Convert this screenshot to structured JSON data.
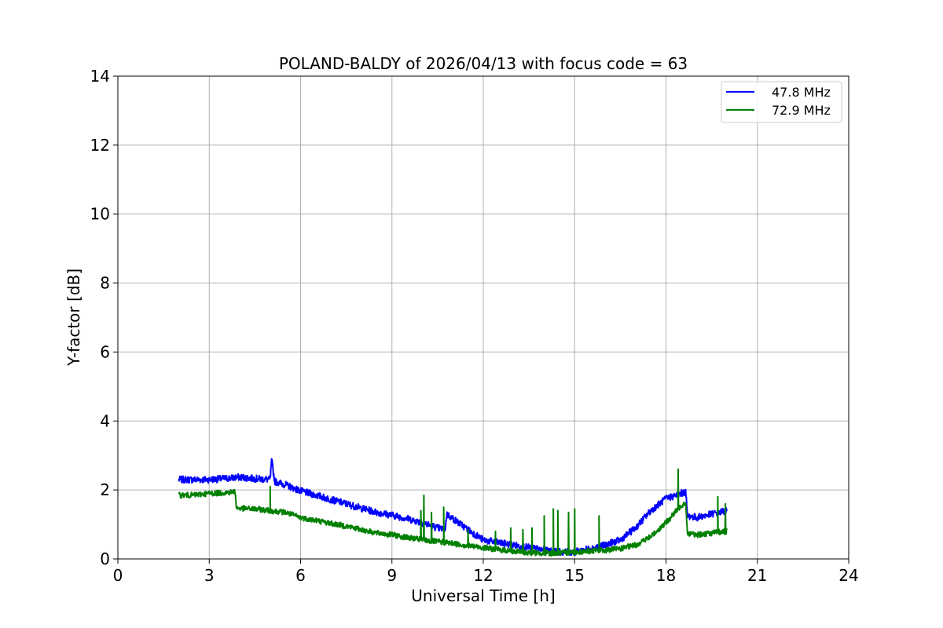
{
  "chart_data": {
    "type": "line",
    "title": "POLAND-BALDY of 2026/04/13 with focus code = 63",
    "xlabel": "Universal Time [h]",
    "ylabel": "Y-factor [dB]",
    "xlim": [
      0,
      24
    ],
    "ylim": [
      0,
      14
    ],
    "xticks": [
      0,
      3,
      6,
      9,
      12,
      15,
      18,
      21,
      24
    ],
    "yticks": [
      0,
      2,
      4,
      6,
      8,
      10,
      12,
      14
    ],
    "grid": true,
    "legend_position": "top-right",
    "series": [
      {
        "name": "47.8 MHz",
        "color": "#0000ff",
        "x": [
          2.0,
          2.5,
          3.0,
          3.5,
          4.0,
          4.5,
          5.0,
          5.05,
          5.15,
          5.5,
          6.0,
          6.5,
          7.0,
          7.5,
          8.0,
          8.5,
          9.0,
          9.5,
          10.0,
          10.5,
          10.75,
          10.8,
          11.0,
          11.5,
          12.0,
          12.5,
          13.0,
          13.5,
          14.0,
          14.5,
          15.0,
          15.5,
          16.0,
          16.5,
          17.0,
          17.5,
          18.0,
          18.5,
          18.65,
          18.7,
          19.0,
          19.5,
          20.0
        ],
        "y": [
          2.3,
          2.3,
          2.3,
          2.33,
          2.37,
          2.33,
          2.3,
          2.85,
          2.25,
          2.15,
          1.97,
          1.85,
          1.72,
          1.6,
          1.47,
          1.35,
          1.27,
          1.17,
          1.05,
          0.9,
          0.85,
          1.3,
          1.17,
          0.85,
          0.55,
          0.47,
          0.4,
          0.33,
          0.25,
          0.2,
          0.2,
          0.3,
          0.4,
          0.55,
          0.9,
          1.4,
          1.75,
          1.9,
          1.95,
          1.25,
          1.2,
          1.3,
          1.4
        ],
        "noise_band": 0.1
      },
      {
        "name": "72.9 MHz",
        "color": "#008000",
        "x": [
          2.0,
          2.5,
          3.0,
          3.5,
          3.85,
          3.9,
          4.5,
          5.0,
          5.5,
          6.0,
          6.5,
          7.0,
          7.5,
          8.0,
          8.5,
          9.0,
          9.5,
          10.0,
          10.5,
          11.0,
          11.5,
          12.0,
          12.5,
          13.0,
          13.5,
          14.0,
          14.5,
          15.0,
          15.5,
          16.0,
          16.5,
          17.0,
          17.5,
          18.0,
          18.5,
          18.65,
          18.7,
          19.0,
          19.5,
          20.0
        ],
        "y": [
          1.85,
          1.85,
          1.9,
          1.92,
          1.95,
          1.47,
          1.45,
          1.4,
          1.35,
          1.2,
          1.12,
          1.03,
          0.95,
          0.85,
          0.75,
          0.7,
          0.62,
          0.55,
          0.5,
          0.45,
          0.38,
          0.33,
          0.27,
          0.22,
          0.18,
          0.17,
          0.17,
          0.2,
          0.23,
          0.25,
          0.3,
          0.4,
          0.65,
          1.05,
          1.55,
          1.65,
          0.75,
          0.7,
          0.75,
          0.8
        ],
        "noise_band": 0.08,
        "spikes": [
          {
            "x": 5.0,
            "y": 2.1
          },
          {
            "x": 9.95,
            "y": 1.4
          },
          {
            "x": 10.05,
            "y": 1.85
          },
          {
            "x": 10.3,
            "y": 1.35
          },
          {
            "x": 10.7,
            "y": 1.5
          },
          {
            "x": 11.5,
            "y": 0.85
          },
          {
            "x": 12.4,
            "y": 0.8
          },
          {
            "x": 12.9,
            "y": 0.9
          },
          {
            "x": 13.3,
            "y": 0.85
          },
          {
            "x": 13.6,
            "y": 0.9
          },
          {
            "x": 14.0,
            "y": 1.25
          },
          {
            "x": 14.3,
            "y": 1.45
          },
          {
            "x": 14.45,
            "y": 1.4
          },
          {
            "x": 14.8,
            "y": 1.35
          },
          {
            "x": 15.0,
            "y": 1.45
          },
          {
            "x": 15.8,
            "y": 1.25
          },
          {
            "x": 18.4,
            "y": 2.6
          },
          {
            "x": 19.7,
            "y": 1.8
          },
          {
            "x": 19.95,
            "y": 1.6
          }
        ]
      }
    ]
  }
}
